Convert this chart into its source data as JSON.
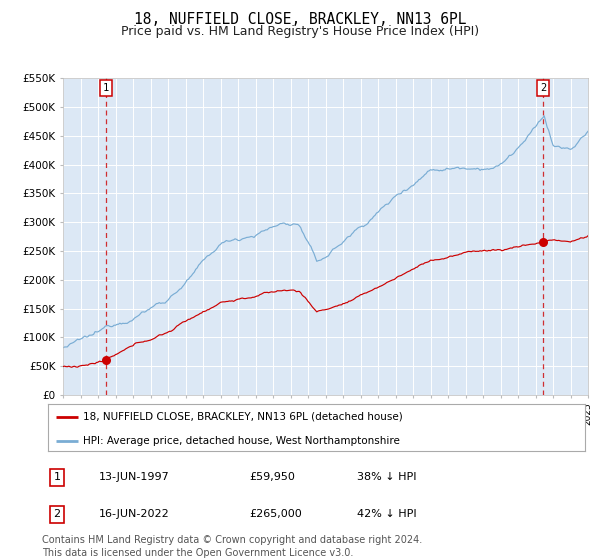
{
  "title": "18, NUFFIELD CLOSE, BRACKLEY, NN13 6PL",
  "subtitle": "Price paid vs. HM Land Registry's House Price Index (HPI)",
  "title_fontsize": 10.5,
  "subtitle_fontsize": 9,
  "bg_color": "#dce8f5",
  "grid_color": "#ffffff",
  "red_line_color": "#cc0000",
  "blue_line_color": "#7aadd4",
  "sale1_date_num": 1997.45,
  "sale1_price": 59950,
  "sale1_label": "13-JUN-1997",
  "sale1_price_str": "£59,950",
  "sale1_hpi": "38% ↓ HPI",
  "sale2_date_num": 2022.45,
  "sale2_price": 265000,
  "sale2_label": "16-JUN-2022",
  "sale2_price_str": "£265,000",
  "sale2_hpi": "42% ↓ HPI",
  "xmin": 1995,
  "xmax": 2025,
  "ymin": 0,
  "ymax": 550000,
  "yticks": [
    0,
    50000,
    100000,
    150000,
    200000,
    250000,
    300000,
    350000,
    400000,
    450000,
    500000,
    550000
  ],
  "legend_label_red": "18, NUFFIELD CLOSE, BRACKLEY, NN13 6PL (detached house)",
  "legend_label_blue": "HPI: Average price, detached house, West Northamptonshire",
  "footer": "Contains HM Land Registry data © Crown copyright and database right 2024.\nThis data is licensed under the Open Government Licence v3.0.",
  "footer_fontsize": 7
}
